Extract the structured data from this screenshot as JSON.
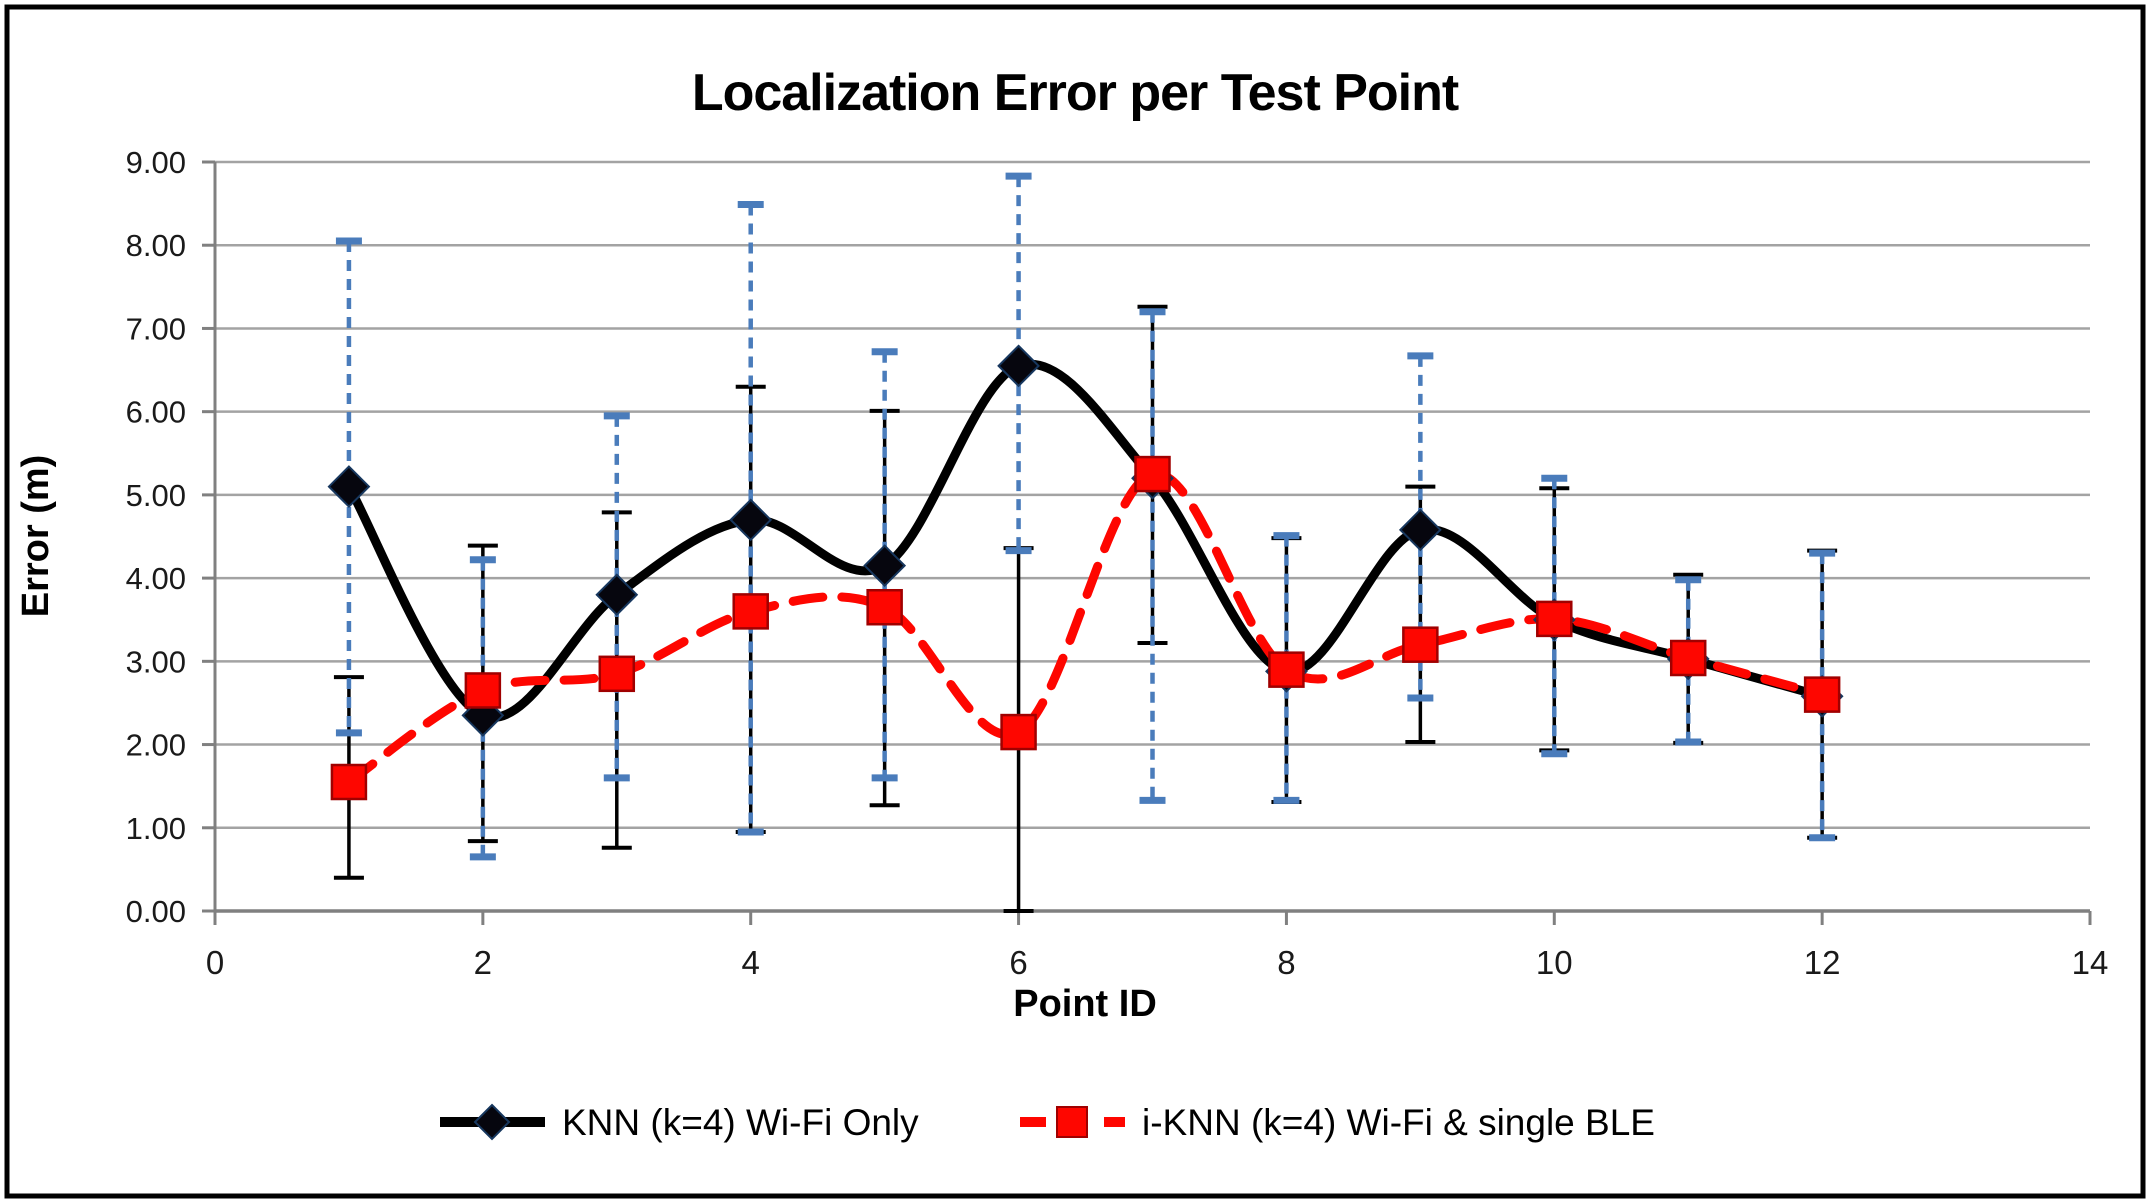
{
  "title": "Localization Error per Test Point",
  "axes": {
    "x": {
      "label": "Point ID",
      "ticks": [
        "0",
        "2",
        "4",
        "6",
        "8",
        "10",
        "12",
        "14"
      ]
    },
    "y": {
      "label": "Error (m)",
      "ticks": [
        "0.00",
        "1.00",
        "2.00",
        "3.00",
        "4.00",
        "5.00",
        "6.00",
        "7.00",
        "8.00",
        "9.00"
      ]
    }
  },
  "legend": {
    "items": [
      {
        "label": "KNN (k=4) Wi-Fi Only",
        "series": "knn"
      },
      {
        "label": "i-KNN (k=4) Wi-Fi & single BLE",
        "series": "iknn"
      }
    ]
  },
  "colors": {
    "black_series": "#000000",
    "red_series": "#fe0600",
    "red_marker_edge": "#a00000",
    "blue_error_bar": "#4a7cbb",
    "gridline": "#a3a3a3",
    "axis_line": "#808080",
    "text": "#000000",
    "frame_border": "#000000",
    "background": "#ffffff"
  },
  "chart_data": {
    "type": "line",
    "title": "Localization Error per Test Point",
    "xlabel": "Point ID",
    "ylabel": "Error (m)",
    "xlim": [
      0,
      14
    ],
    "ylim": [
      0,
      9
    ],
    "x_tick_step": 2,
    "y_tick_step": 1,
    "grid": true,
    "legend_position": "bottom",
    "x": [
      1,
      2,
      3,
      4,
      5,
      6,
      7,
      8,
      9,
      10,
      11,
      12
    ],
    "series": [
      {
        "name": "KNN (k=4) Wi-Fi Only",
        "color": "#000000",
        "line_style": "solid",
        "marker": "diamond",
        "values": [
          5.1,
          2.35,
          3.8,
          4.7,
          4.15,
          6.55,
          5.2,
          2.88,
          4.58,
          3.5,
          3.03,
          2.58
        ],
        "err_low": [
          2.14,
          0.65,
          1.6,
          0.95,
          1.6,
          4.33,
          1.33,
          1.33,
          2.56,
          1.89,
          2.03,
          0.88
        ],
        "err_high": [
          8.05,
          4.22,
          5.95,
          8.49,
          6.72,
          8.83,
          7.2,
          4.51,
          6.67,
          5.2,
          3.98,
          4.3
        ],
        "error_bar_color": "#4a7cbb",
        "error_bar_style": "dashed"
      },
      {
        "name": "i-KNN (k=4) Wi-Fi & single BLE",
        "color": "#fe0600",
        "line_style": "dashed",
        "marker": "square",
        "values": [
          1.55,
          2.65,
          2.85,
          3.6,
          3.65,
          2.15,
          5.25,
          2.9,
          3.2,
          3.51,
          3.04,
          2.6
        ],
        "err_low": [
          0.4,
          0.84,
          0.76,
          0.95,
          1.27,
          0.0,
          3.22,
          1.31,
          2.03,
          1.93,
          2.02,
          0.88
        ],
        "err_high": [
          2.81,
          4.39,
          4.79,
          6.3,
          6.01,
          4.36,
          7.26,
          4.48,
          5.1,
          5.08,
          4.04,
          4.33
        ],
        "error_bar_color": "#000000",
        "error_bar_style": "solid"
      }
    ]
  }
}
